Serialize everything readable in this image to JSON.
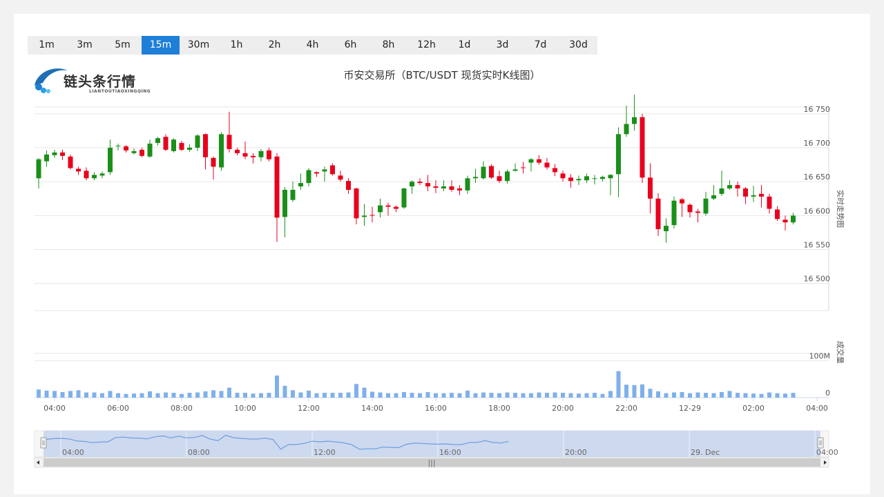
{
  "tabs": [
    {
      "label": "1m"
    },
    {
      "label": "3m"
    },
    {
      "label": "5m"
    },
    {
      "label": "15m",
      "active": true
    },
    {
      "label": "30m"
    },
    {
      "label": "1h"
    },
    {
      "label": "2h"
    },
    {
      "label": "4h"
    },
    {
      "label": "6h"
    },
    {
      "label": "8h"
    },
    {
      "label": "12h"
    },
    {
      "label": "1d"
    },
    {
      "label": "3d"
    },
    {
      "label": "7d"
    },
    {
      "label": "30d"
    }
  ],
  "logo": {
    "text": "链头条行情",
    "sub": "LIANTOUTIAOXINGQING"
  },
  "colors": {
    "up": "#1a8f1a",
    "down": "#e8001c",
    "volume": "#7fb0ea",
    "accent": "#1f7fd6"
  },
  "chart_data": {
    "type": "candlestick",
    "title": "币安交易所（BTC/USDT 现货实时K线图）",
    "price_axis_label": "实时走势图",
    "volume_axis_label": "成交量",
    "y_ticks": [
      "16 500",
      "16 550",
      "16 600",
      "16 650",
      "16 700",
      "16 750"
    ],
    "y_tick_values": [
      16500,
      16550,
      16600,
      16650,
      16700,
      16750
    ],
    "ylim": [
      16460,
      16760
    ],
    "volume_ticks": [
      "0",
      "100M"
    ],
    "volume_tick_values": [
      0,
      100
    ],
    "volume_max": 120,
    "x_ticks": [
      "04:00",
      "06:00",
      "08:00",
      "10:00",
      "12:00",
      "14:00",
      "16:00",
      "18:00",
      "20:00",
      "22:00",
      "12-29",
      "02:00",
      "04:00"
    ],
    "x_tick_hours": [
      4,
      6,
      8,
      10,
      12,
      14,
      16,
      18,
      20,
      22,
      24,
      26,
      28
    ],
    "start_hour": 3.5,
    "interval_hours": 0.25,
    "candles": [
      [
        16655,
        16683,
        16640,
        16685,
        22
      ],
      [
        16680,
        16690,
        16672,
        16696,
        19
      ],
      [
        16689,
        16693,
        16685,
        16697,
        18
      ],
      [
        16693,
        16688,
        16682,
        16697,
        15
      ],
      [
        16687,
        16670,
        16668,
        16690,
        18
      ],
      [
        16669,
        16665,
        16660,
        16672,
        20
      ],
      [
        16666,
        16655,
        16652,
        16671,
        14
      ],
      [
        16655,
        16660,
        16652,
        16664,
        14
      ],
      [
        16659,
        16662,
        16655,
        16665,
        12
      ],
      [
        16664,
        16700,
        16660,
        16712,
        18
      ],
      [
        16702,
        16703,
        16696,
        16706,
        12
      ],
      [
        16702,
        16696,
        16693,
        16704,
        10
      ],
      [
        16692,
        16695,
        16690,
        16699,
        11
      ],
      [
        16697,
        16688,
        16686,
        16700,
        12
      ],
      [
        16687,
        16706,
        16685,
        16712,
        17
      ],
      [
        16707,
        16714,
        16703,
        16716,
        12
      ],
      [
        16716,
        16697,
        16695,
        16720,
        14
      ],
      [
        16695,
        16712,
        16693,
        16714,
        13
      ],
      [
        16707,
        16697,
        16695,
        16710,
        10
      ],
      [
        16697,
        16700,
        16694,
        16705,
        13
      ],
      [
        16700,
        16718,
        16695,
        16720,
        14
      ],
      [
        16720,
        16686,
        16668,
        16721,
        17
      ],
      [
        16685,
        16672,
        16653,
        16687,
        20
      ],
      [
        16671,
        16720,
        16666,
        16723,
        18
      ],
      [
        16719,
        16698,
        16693,
        16753,
        27
      ],
      [
        16697,
        16692,
        16689,
        16700,
        13
      ],
      [
        16692,
        16687,
        16683,
        16709,
        13
      ],
      [
        16688,
        16686,
        16677,
        16692,
        11
      ],
      [
        16686,
        16695,
        16680,
        16698,
        12
      ],
      [
        16696,
        16683,
        16680,
        16700,
        13
      ],
      [
        16687,
        16597,
        16561,
        16692,
        60
      ],
      [
        16598,
        16638,
        16568,
        16642,
        32
      ],
      [
        16623,
        16638,
        16620,
        16650,
        20
      ],
      [
        16643,
        16648,
        16638,
        16662,
        14
      ],
      [
        16648,
        16667,
        16643,
        16670,
        19
      ],
      [
        16664,
        16662,
        16657,
        16665,
        12
      ],
      [
        16665,
        16668,
        16650,
        16672,
        13
      ],
      [
        16674,
        16661,
        16659,
        16677,
        13
      ],
      [
        16659,
        16653,
        16650,
        16666,
        13
      ],
      [
        16651,
        16638,
        16632,
        16655,
        14
      ],
      [
        16640,
        16596,
        16587,
        16641,
        37
      ],
      [
        16598,
        16600,
        16585,
        16617,
        27
      ],
      [
        16601,
        16600,
        16590,
        16613,
        16
      ],
      [
        16605,
        16615,
        16597,
        16625,
        14
      ],
      [
        16615,
        16613,
        16600,
        16619,
        12
      ],
      [
        16613,
        16610,
        16605,
        16615,
        12
      ],
      [
        16612,
        16640,
        16610,
        16641,
        15
      ],
      [
        16643,
        16650,
        16632,
        16652,
        13
      ],
      [
        16650,
        16648,
        16645,
        16655,
        12
      ],
      [
        16648,
        16643,
        16636,
        16660,
        15
      ],
      [
        16643,
        16641,
        16633,
        16652,
        12
      ],
      [
        16640,
        16643,
        16636,
        16652,
        12
      ],
      [
        16643,
        16638,
        16635,
        16652,
        13
      ],
      [
        16640,
        16637,
        16630,
        16645,
        12
      ],
      [
        16637,
        16655,
        16632,
        16659,
        19
      ],
      [
        16655,
        16657,
        16648,
        16669,
        12
      ],
      [
        16655,
        16672,
        16653,
        16680,
        14
      ],
      [
        16673,
        16656,
        16654,
        16676,
        13
      ],
      [
        16658,
        16651,
        16648,
        16666,
        12
      ],
      [
        16651,
        16665,
        16647,
        16668,
        14
      ],
      [
        16666,
        16668,
        16665,
        16677,
        13
      ],
      [
        16671,
        16670,
        16662,
        16679,
        12
      ],
      [
        16678,
        16683,
        16665,
        16685,
        12
      ],
      [
        16683,
        16678,
        16675,
        16689,
        14
      ],
      [
        16678,
        16671,
        16668,
        16685,
        13
      ],
      [
        16670,
        16664,
        16658,
        16676,
        14
      ],
      [
        16662,
        16655,
        16650,
        16666,
        13
      ],
      [
        16656,
        16651,
        16641,
        16661,
        12
      ],
      [
        16652,
        16654,
        16645,
        16659,
        11
      ],
      [
        16652,
        16658,
        16648,
        16662,
        12
      ],
      [
        16654,
        16655,
        16646,
        16660,
        13
      ],
      [
        16654,
        16657,
        16650,
        16659,
        10
      ],
      [
        16655,
        16660,
        16630,
        16661,
        18
      ],
      [
        16661,
        16720,
        16627,
        16730,
        72
      ],
      [
        16720,
        16735,
        16716,
        16762,
        35
      ],
      [
        16735,
        16745,
        16725,
        16778,
        34
      ],
      [
        16745,
        16656,
        16648,
        16750,
        36
      ],
      [
        16656,
        16625,
        16603,
        16677,
        24
      ],
      [
        16625,
        16580,
        16570,
        16633,
        17
      ],
      [
        16577,
        16585,
        16560,
        16596,
        12
      ],
      [
        16586,
        16622,
        16581,
        16628,
        14
      ],
      [
        16624,
        16618,
        16598,
        16626,
        15
      ],
      [
        16616,
        16605,
        16597,
        16618,
        12
      ],
      [
        16606,
        16604,
        16590,
        16610,
        14
      ],
      [
        16603,
        16625,
        16600,
        16635,
        13
      ],
      [
        16625,
        16630,
        16623,
        16645,
        12
      ],
      [
        16632,
        16640,
        16629,
        16666,
        15
      ],
      [
        16640,
        16645,
        16638,
        16652,
        18
      ],
      [
        16645,
        16640,
        16628,
        16650,
        13
      ],
      [
        16640,
        16628,
        16617,
        16642,
        12
      ],
      [
        16628,
        16630,
        16620,
        16644,
        11
      ],
      [
        16632,
        16628,
        16612,
        16645,
        10
      ],
      [
        16628,
        16610,
        16603,
        16632,
        14
      ],
      [
        16609,
        16595,
        16592,
        16614,
        12
      ],
      [
        16594,
        16590,
        16578,
        16600,
        11
      ],
      [
        16590,
        16600,
        16587,
        16604,
        13
      ]
    ],
    "navigator": {
      "x_ticks": [
        "04:00",
        "08:00",
        "12:00",
        "16:00",
        "20:00",
        "29. Dec",
        "04:00"
      ],
      "x_tick_hours": [
        4,
        8,
        12,
        16,
        20,
        24,
        28
      ]
    }
  }
}
